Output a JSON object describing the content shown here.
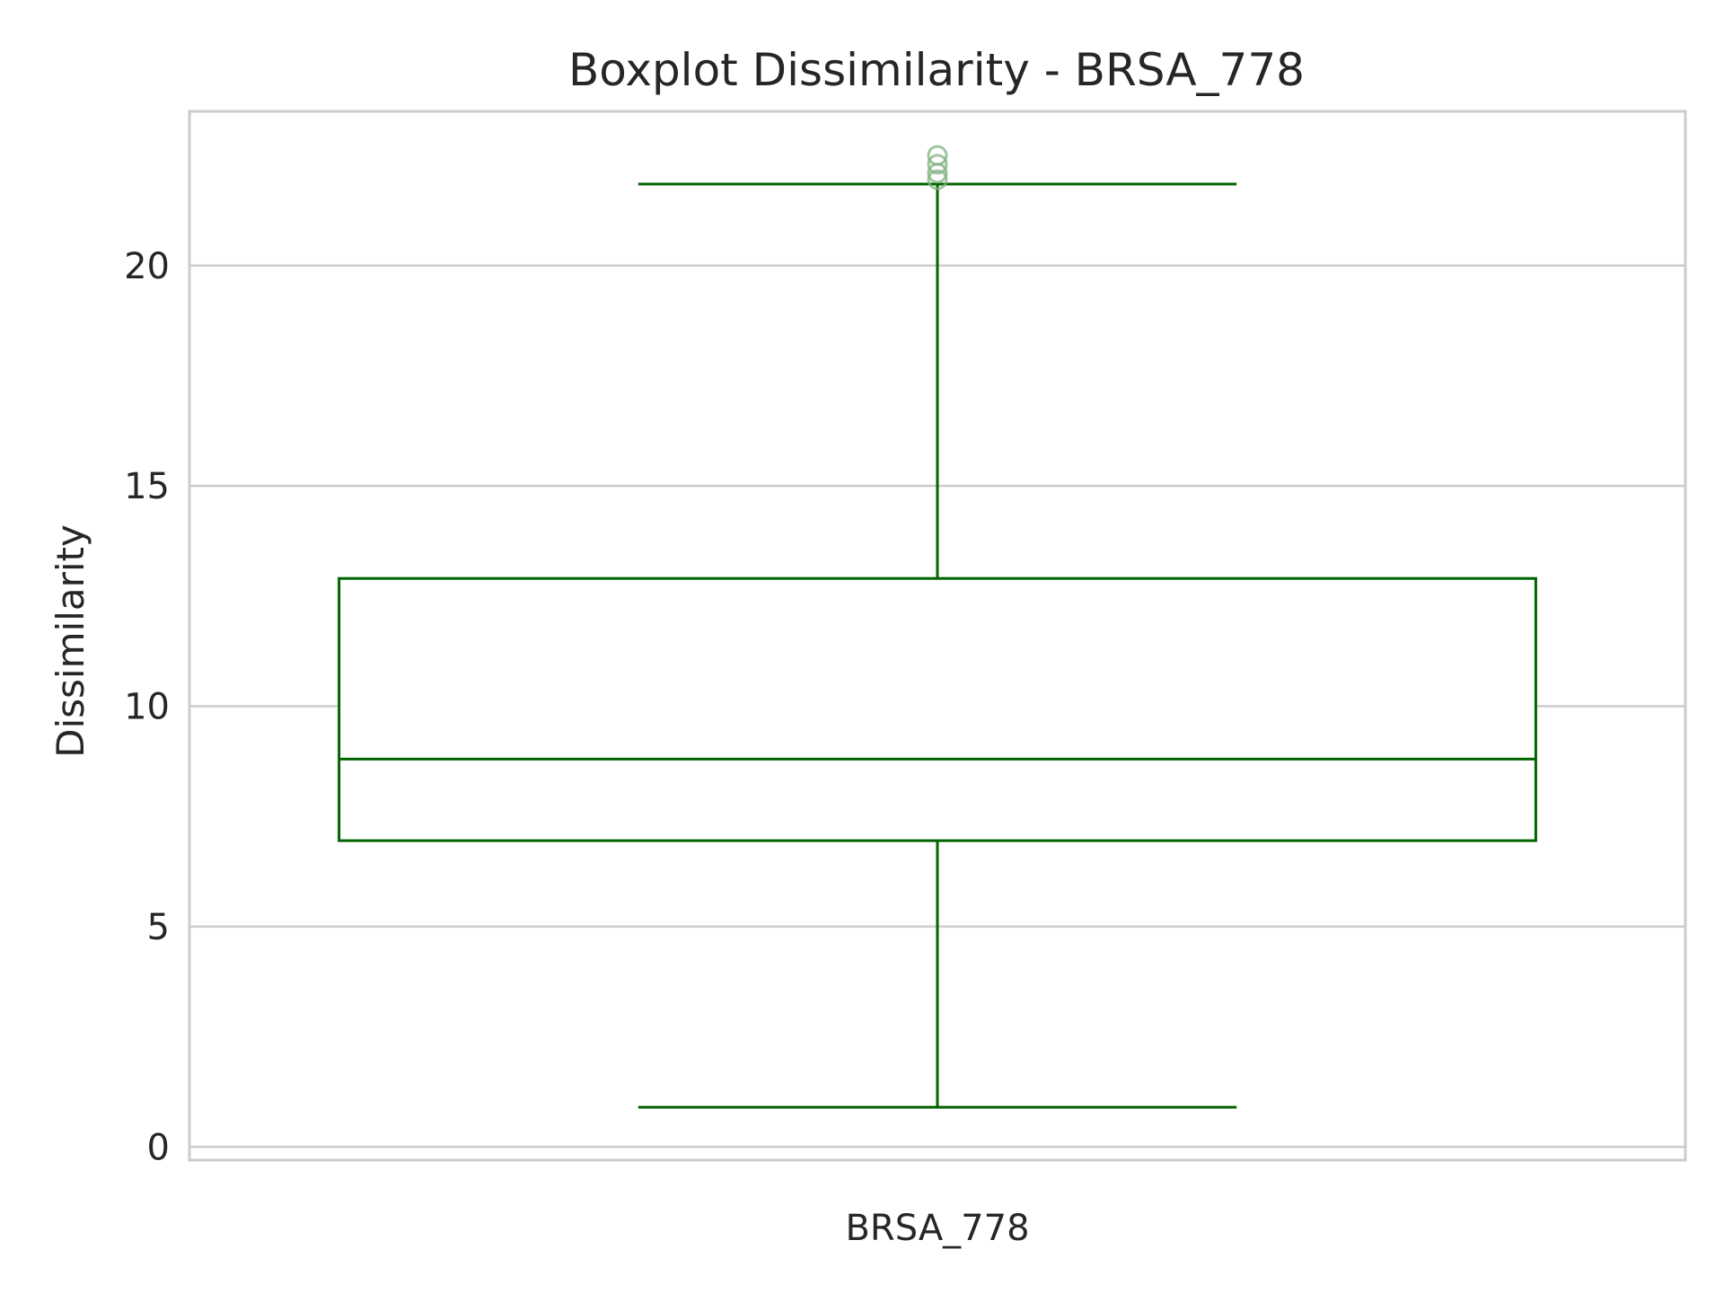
{
  "chart_data": {
    "type": "boxplot",
    "title": "Boxplot Dissimilarity - BRSA_778",
    "xlabel": "",
    "ylabel": "Dissimilarity",
    "categories": [
      "BRSA_778"
    ],
    "ylim": [
      -0.3,
      23.5
    ],
    "yticks": [
      0,
      5,
      10,
      15,
      20
    ],
    "grid": "horizontal",
    "box": {
      "whisker_low": 0.9,
      "q1": 6.95,
      "median": 8.8,
      "q3": 12.9,
      "whisker_high": 21.85
    },
    "outliers": [
      21.95,
      22.1,
      22.3,
      22.5
    ],
    "colors": {
      "box": "#006400",
      "outlier": "#7fb27f",
      "grid": "#cccccc",
      "spine": "#cccccc",
      "text": "#262626"
    }
  }
}
